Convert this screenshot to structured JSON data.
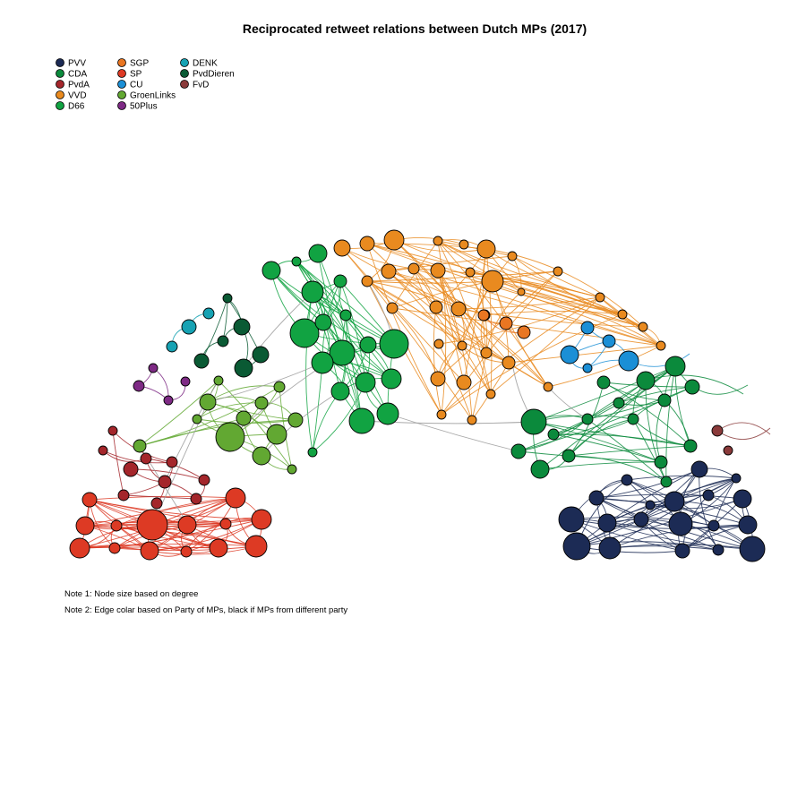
{
  "title": "Reciprocated retweet relations between Dutch MPs (2017)",
  "legend": [
    {
      "party": "PVV",
      "color": "#1c2b55"
    },
    {
      "party": "CDA",
      "color": "#0b8a3c"
    },
    {
      "party": "PvdA",
      "color": "#a4262b"
    },
    {
      "party": "VVD",
      "color": "#e98a1f"
    },
    {
      "party": "D66",
      "color": "#11a342"
    },
    {
      "party": "SGP",
      "color": "#e97622"
    },
    {
      "party": "SP",
      "color": "#dd3a24"
    },
    {
      "party": "CU",
      "color": "#1b8fd6"
    },
    {
      "party": "GroenLinks",
      "color": "#62a832"
    },
    {
      "party": "50Plus",
      "color": "#7e2a85"
    },
    {
      "party": "DENK",
      "color": "#16a2b3"
    },
    {
      "party": "PvdDieren",
      "color": "#0a5a34"
    },
    {
      "party": "FvD",
      "color": "#8a3a3a"
    }
  ],
  "notes": [
    "Note 1: Node size based on degree",
    "Note 2: Edge colar based on Party of MPs, black if MPs from different party"
  ]
}
